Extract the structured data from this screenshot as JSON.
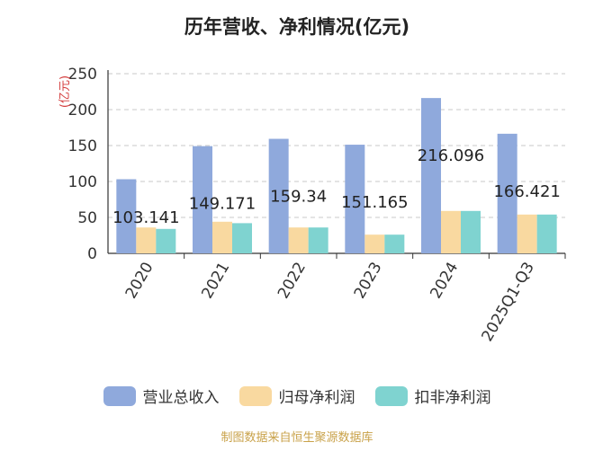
{
  "chart_data": {
    "type": "bar",
    "title": "历年营收、净利情况(亿元)",
    "ylabel": "(亿元)",
    "xlabel": "",
    "ylim": [
      0,
      250
    ],
    "yticks": [
      0,
      50,
      100,
      150,
      200,
      250
    ],
    "categories": [
      "2020",
      "2021",
      "2022",
      "2023",
      "2024",
      "2025Q1-Q3"
    ],
    "series": [
      {
        "name": "营业总收入",
        "values": [
          103.141,
          149.171,
          159.34,
          151.165,
          216.096,
          166.421
        ],
        "color": "#8fa9dc"
      },
      {
        "name": "归母净利润",
        "values": [
          36,
          44,
          36,
          26,
          59,
          54
        ],
        "color": "#f9d9a0"
      },
      {
        "name": "扣非净利润",
        "values": [
          34,
          42,
          36,
          26,
          59,
          54
        ],
        "color": "#7fd3d0"
      }
    ],
    "data_labels": [
      "103.141",
      "149.171",
      "159.34",
      "151.165",
      "216.096",
      "166.421"
    ],
    "grid": true,
    "legend_position": "bottom"
  },
  "source": "制图数据来自恒生聚源数据库"
}
